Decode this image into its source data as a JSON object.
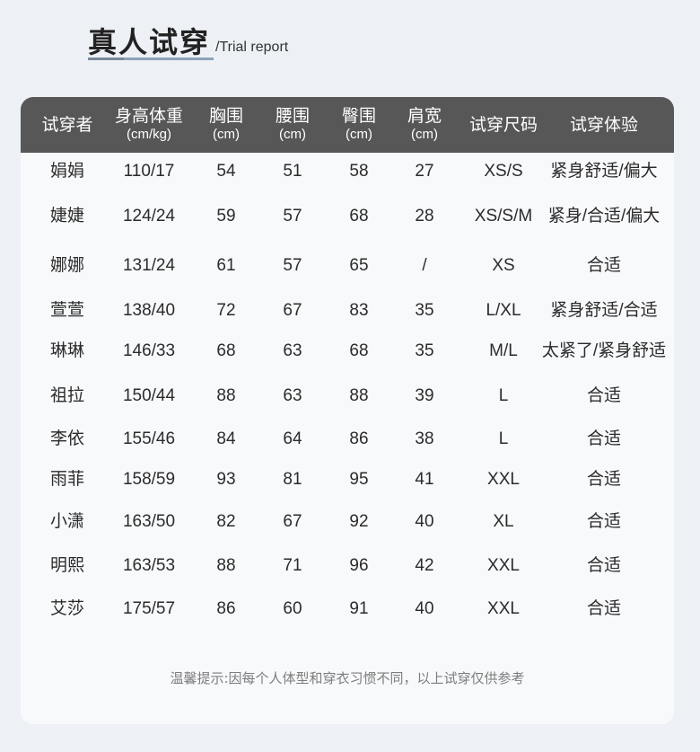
{
  "title": {
    "main": "真人试穿",
    "sub": "/Trial report"
  },
  "table": {
    "headers": [
      {
        "main": "试穿者",
        "unit": ""
      },
      {
        "main": "身高体重",
        "unit": "(cm/kg)"
      },
      {
        "main": "胸围",
        "unit": "(cm)"
      },
      {
        "main": "腰围",
        "unit": "(cm)"
      },
      {
        "main": "臀围",
        "unit": "(cm)"
      },
      {
        "main": "肩宽",
        "unit": "(cm)"
      },
      {
        "main": "试穿尺码",
        "unit": ""
      },
      {
        "main": "试穿体验",
        "unit": ""
      }
    ],
    "rows": [
      [
        "娟娟",
        "110/17",
        "54",
        "51",
        "58",
        "27",
        "XS/S",
        "紧身舒适/偏大"
      ],
      [
        "婕婕",
        "124/24",
        "59",
        "57",
        "68",
        "28",
        "XS/S/M",
        "紧身/合适/偏大"
      ],
      [
        "娜娜",
        "131/24",
        "61",
        "57",
        "65",
        "/",
        "XS",
        "合适"
      ],
      [
        "萱萱",
        "138/40",
        "72",
        "67",
        "83",
        "35",
        "L/XL",
        "紧身舒适/合适"
      ],
      [
        "琳琳",
        "146/33",
        "68",
        "63",
        "68",
        "35",
        "M/L",
        "太紧了/紧身舒适"
      ],
      [
        "祖拉",
        "150/44",
        "88",
        "63",
        "88",
        "39",
        "L",
        "合适"
      ],
      [
        "李依",
        "155/46",
        "84",
        "64",
        "86",
        "38",
        "L",
        "合适"
      ],
      [
        "雨菲",
        "158/59",
        "93",
        "81",
        "95",
        "41",
        "XXL",
        "合适"
      ],
      [
        "小潇",
        "163/50",
        "82",
        "67",
        "92",
        "40",
        "XL",
        "合适"
      ],
      [
        "明熙",
        "163/53",
        "88",
        "71",
        "96",
        "42",
        "XXL",
        "合适"
      ],
      [
        "艾莎",
        "175/57",
        "86",
        "60",
        "91",
        "40",
        "XXL",
        "合适"
      ]
    ]
  },
  "note": "温馨提示:因每个人体型和穿衣习惯不同，以上试穿仅供参考",
  "colors": {
    "header_bg": "#575757",
    "page_bg": "#edf1f6",
    "card_bg": "#f8f9fb",
    "accent_line": "#8ea2b8"
  }
}
